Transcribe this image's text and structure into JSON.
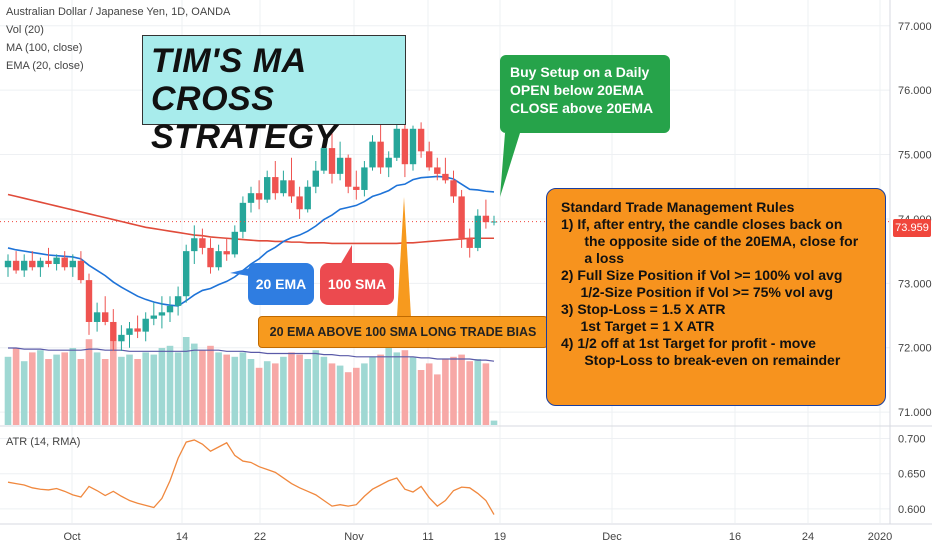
{
  "legend": {
    "symbol": "Australian Dollar / Japanese Yen, 1D, OANDA",
    "vol": "Vol (20)",
    "ma": "MA (100, close)",
    "ema": "EMA (20, close)",
    "atr": "ATR (14, RMA)"
  },
  "annotations": {
    "title_line1": "TIM'S MA",
    "title_line2": "CROSS STRATEGY",
    "buy_line1": "Buy Setup on a Daily",
    "buy_line2": "OPEN below 20EMA",
    "buy_line3": "CLOSE above 20EMA",
    "ema_label": "20 EMA",
    "sma_label": "100 SMA",
    "bias_label": "20 EMA ABOVE 100 SMA LONG TRADE BIAS",
    "rules": [
      "Standard Trade Management Rules",
      "1) If, after entry, the candle closes back on",
      "      the opposite side of the 20EMA, close for",
      "      a loss",
      "2) Full Size Position if Vol >= 100% vol avg",
      "     1/2-Size Position if Vol >= 75% vol avg",
      "3) Stop-Loss = 1.5 X ATR",
      "     1st Target = 1 X ATR",
      "4) 1/2 off at 1st Target for profit - move",
      "      Stop-Loss to break-even on remainder"
    ]
  },
  "colors": {
    "up": "#26a69a",
    "down": "#ef5350",
    "vol_up": "#9fd8d3",
    "vol_down": "#f7a8a6",
    "ema": "#1e73d8",
    "sma": "#e04b3a",
    "atr": "#f0883e",
    "vol_ma": "#5a5aa8"
  },
  "chart_data": {
    "type": "candlestick",
    "symbol": "AUDJPY",
    "timeframe": "1D",
    "price_axis": {
      "ticks": [
        "77.000",
        "76.000",
        "75.000",
        "74.000",
        "73.000",
        "72.000",
        "71.000"
      ],
      "range": [
        70.8,
        77.4
      ]
    },
    "current_price": "73.959",
    "x_ticks": [
      "Oct",
      "14",
      "22",
      "Nov",
      "11",
      "19",
      "Dec",
      "16",
      "24",
      "2020"
    ],
    "candles": [
      {
        "o": 73.25,
        "h": 73.45,
        "l": 73.1,
        "c": 73.35
      },
      {
        "o": 73.35,
        "h": 73.5,
        "l": 73.15,
        "c": 73.2
      },
      {
        "o": 73.2,
        "h": 73.45,
        "l": 73.1,
        "c": 73.35
      },
      {
        "o": 73.35,
        "h": 73.5,
        "l": 73.2,
        "c": 73.25
      },
      {
        "o": 73.25,
        "h": 73.4,
        "l": 73.1,
        "c": 73.35
      },
      {
        "o": 73.35,
        "h": 73.55,
        "l": 73.25,
        "c": 73.3
      },
      {
        "o": 73.3,
        "h": 73.45,
        "l": 73.2,
        "c": 73.4
      },
      {
        "o": 73.4,
        "h": 73.5,
        "l": 73.2,
        "c": 73.25
      },
      {
        "o": 73.25,
        "h": 73.45,
        "l": 73.1,
        "c": 73.35
      },
      {
        "o": 73.35,
        "h": 73.5,
        "l": 73.0,
        "c": 73.05
      },
      {
        "o": 73.05,
        "h": 73.15,
        "l": 72.2,
        "c": 72.4
      },
      {
        "o": 72.4,
        "h": 72.7,
        "l": 72.25,
        "c": 72.55
      },
      {
        "o": 72.55,
        "h": 72.8,
        "l": 72.35,
        "c": 72.4
      },
      {
        "o": 72.4,
        "h": 72.6,
        "l": 71.95,
        "c": 72.1
      },
      {
        "o": 72.1,
        "h": 72.35,
        "l": 71.95,
        "c": 72.2
      },
      {
        "o": 72.2,
        "h": 72.4,
        "l": 72.0,
        "c": 72.3
      },
      {
        "o": 72.3,
        "h": 72.5,
        "l": 72.15,
        "c": 72.25
      },
      {
        "o": 72.25,
        "h": 72.55,
        "l": 72.1,
        "c": 72.45
      },
      {
        "o": 72.45,
        "h": 72.7,
        "l": 72.35,
        "c": 72.5
      },
      {
        "o": 72.5,
        "h": 72.8,
        "l": 72.3,
        "c": 72.55
      },
      {
        "o": 72.55,
        "h": 72.8,
        "l": 72.4,
        "c": 72.65
      },
      {
        "o": 72.65,
        "h": 72.95,
        "l": 72.5,
        "c": 72.8
      },
      {
        "o": 72.8,
        "h": 73.6,
        "l": 72.7,
        "c": 73.5
      },
      {
        "o": 73.5,
        "h": 73.9,
        "l": 73.3,
        "c": 73.7
      },
      {
        "o": 73.7,
        "h": 73.85,
        "l": 73.45,
        "c": 73.55
      },
      {
        "o": 73.55,
        "h": 73.7,
        "l": 73.15,
        "c": 73.25
      },
      {
        "o": 73.25,
        "h": 73.6,
        "l": 73.2,
        "c": 73.5
      },
      {
        "o": 73.5,
        "h": 73.7,
        "l": 73.35,
        "c": 73.45
      },
      {
        "o": 73.45,
        "h": 73.9,
        "l": 73.4,
        "c": 73.8
      },
      {
        "o": 73.8,
        "h": 74.35,
        "l": 73.7,
        "c": 74.25
      },
      {
        "o": 74.25,
        "h": 74.5,
        "l": 74.1,
        "c": 74.4
      },
      {
        "o": 74.4,
        "h": 74.6,
        "l": 74.15,
        "c": 74.3
      },
      {
        "o": 74.3,
        "h": 74.75,
        "l": 74.25,
        "c": 74.65
      },
      {
        "o": 74.65,
        "h": 74.9,
        "l": 74.3,
        "c": 74.4
      },
      {
        "o": 74.4,
        "h": 74.75,
        "l": 74.35,
        "c": 74.6
      },
      {
        "o": 74.6,
        "h": 74.95,
        "l": 74.25,
        "c": 74.35
      },
      {
        "o": 74.35,
        "h": 74.5,
        "l": 74.0,
        "c": 74.15
      },
      {
        "o": 74.15,
        "h": 74.6,
        "l": 74.1,
        "c": 74.5
      },
      {
        "o": 74.5,
        "h": 74.9,
        "l": 74.4,
        "c": 74.75
      },
      {
        "o": 74.75,
        "h": 75.25,
        "l": 74.7,
        "c": 75.1
      },
      {
        "o": 75.1,
        "h": 75.4,
        "l": 74.55,
        "c": 74.7
      },
      {
        "o": 74.7,
        "h": 75.2,
        "l": 74.6,
        "c": 74.95
      },
      {
        "o": 74.95,
        "h": 75.0,
        "l": 74.4,
        "c": 74.5
      },
      {
        "o": 74.5,
        "h": 74.75,
        "l": 74.3,
        "c": 74.45
      },
      {
        "o": 74.45,
        "h": 74.9,
        "l": 74.35,
        "c": 74.8
      },
      {
        "o": 74.8,
        "h": 75.3,
        "l": 74.75,
        "c": 75.2
      },
      {
        "o": 75.2,
        "h": 75.55,
        "l": 74.7,
        "c": 74.8
      },
      {
        "o": 74.8,
        "h": 75.05,
        "l": 74.65,
        "c": 74.95
      },
      {
        "o": 74.95,
        "h": 75.5,
        "l": 74.9,
        "c": 75.4
      },
      {
        "o": 75.4,
        "h": 75.8,
        "l": 74.65,
        "c": 74.85
      },
      {
        "o": 74.85,
        "h": 75.45,
        "l": 74.75,
        "c": 75.4
      },
      {
        "o": 75.4,
        "h": 75.5,
        "l": 74.95,
        "c": 75.05
      },
      {
        "o": 75.05,
        "h": 75.2,
        "l": 74.75,
        "c": 74.8
      },
      {
        "o": 74.8,
        "h": 74.95,
        "l": 74.6,
        "c": 74.7
      },
      {
        "o": 74.7,
        "h": 74.95,
        "l": 74.55,
        "c": 74.6
      },
      {
        "o": 74.6,
        "h": 74.75,
        "l": 74.25,
        "c": 74.35
      },
      {
        "o": 74.35,
        "h": 74.45,
        "l": 73.55,
        "c": 73.7
      },
      {
        "o": 73.7,
        "h": 73.85,
        "l": 73.4,
        "c": 73.55
      },
      {
        "o": 73.55,
        "h": 74.15,
        "l": 73.5,
        "c": 74.05
      },
      {
        "o": 74.05,
        "h": 74.3,
        "l": 73.85,
        "c": 73.95
      },
      {
        "o": 73.95,
        "h": 74.05,
        "l": 73.9,
        "c": 73.96
      }
    ],
    "ema20": [
      73.55,
      73.52,
      73.5,
      73.48,
      73.46,
      73.44,
      73.43,
      73.42,
      73.41,
      73.38,
      73.28,
      73.2,
      73.12,
      73.02,
      72.94,
      72.87,
      72.8,
      72.75,
      72.71,
      72.68,
      72.66,
      72.65,
      72.73,
      72.82,
      72.89,
      72.92,
      72.98,
      73.03,
      73.1,
      73.2,
      73.3,
      73.38,
      73.49,
      73.56,
      73.65,
      73.71,
      73.75,
      73.81,
      73.89,
      73.99,
      74.06,
      74.15,
      74.18,
      74.21,
      74.27,
      74.35,
      74.39,
      74.44,
      74.52,
      74.54,
      74.61,
      74.64,
      74.65,
      74.66,
      74.65,
      74.62,
      74.54,
      74.46,
      74.45,
      74.43,
      74.42
    ],
    "sma100": [
      74.38,
      74.35,
      74.32,
      74.29,
      74.26,
      74.23,
      74.2,
      74.17,
      74.14,
      74.11,
      74.08,
      74.05,
      74.02,
      73.99,
      73.96,
      73.93,
      73.9,
      73.87,
      73.85,
      73.83,
      73.81,
      73.79,
      73.77,
      73.75,
      73.74,
      73.72,
      73.71,
      73.7,
      73.69,
      73.68,
      73.67,
      73.66,
      73.66,
      73.65,
      73.65,
      73.64,
      73.64,
      73.63,
      73.63,
      73.63,
      73.62,
      73.62,
      73.62,
      73.62,
      73.62,
      73.62,
      73.62,
      73.62,
      73.62,
      73.63,
      73.63,
      73.64,
      73.65,
      73.66,
      73.67,
      73.68,
      73.69,
      73.7,
      73.7,
      73.7,
      73.7
    ],
    "volume": [
      0.62,
      0.7,
      0.58,
      0.66,
      0.68,
      0.6,
      0.64,
      0.66,
      0.7,
      0.6,
      0.78,
      0.66,
      0.6,
      0.76,
      0.62,
      0.64,
      0.6,
      0.66,
      0.64,
      0.7,
      0.72,
      0.66,
      0.8,
      0.74,
      0.68,
      0.72,
      0.66,
      0.64,
      0.62,
      0.66,
      0.6,
      0.52,
      0.58,
      0.56,
      0.62,
      0.66,
      0.64,
      0.6,
      0.68,
      0.62,
      0.56,
      0.54,
      0.48,
      0.52,
      0.56,
      0.62,
      0.64,
      0.7,
      0.66,
      0.68,
      0.62,
      0.5,
      0.56,
      0.46,
      0.6,
      0.62,
      0.64,
      0.58,
      0.6,
      0.56,
      0.04
    ],
    "volume_ma": [
      0.7,
      0.7,
      0.69,
      0.69,
      0.69,
      0.68,
      0.68,
      0.68,
      0.68,
      0.68,
      0.69,
      0.69,
      0.68,
      0.68,
      0.68,
      0.67,
      0.67,
      0.67,
      0.67,
      0.67,
      0.67,
      0.67,
      0.67,
      0.68,
      0.68,
      0.68,
      0.68,
      0.67,
      0.67,
      0.67,
      0.66,
      0.66,
      0.65,
      0.65,
      0.65,
      0.65,
      0.65,
      0.65,
      0.65,
      0.64,
      0.64,
      0.63,
      0.63,
      0.62,
      0.62,
      0.62,
      0.62,
      0.62,
      0.62,
      0.62,
      0.62,
      0.61,
      0.61,
      0.6,
      0.6,
      0.6,
      0.6,
      0.6,
      0.59,
      0.59,
      0.58
    ],
    "atr_axis": {
      "ticks": [
        "0.700",
        "0.650",
        "0.600"
      ],
      "range": [
        0.58,
        0.715
      ]
    },
    "atr": [
      0.638,
      0.636,
      0.634,
      0.63,
      0.628,
      0.627,
      0.629,
      0.625,
      0.62,
      0.617,
      0.632,
      0.626,
      0.619,
      0.625,
      0.618,
      0.612,
      0.608,
      0.605,
      0.602,
      0.615,
      0.64,
      0.672,
      0.695,
      0.698,
      0.692,
      0.682,
      0.688,
      0.694,
      0.676,
      0.668,
      0.666,
      0.66,
      0.656,
      0.652,
      0.644,
      0.636,
      0.63,
      0.625,
      0.62,
      0.612,
      0.604,
      0.606,
      0.604,
      0.606,
      0.618,
      0.628,
      0.634,
      0.64,
      0.644,
      0.628,
      0.624,
      0.632,
      0.616,
      0.604,
      0.612,
      0.626,
      0.631,
      0.63,
      0.622,
      0.612,
      0.592
    ]
  }
}
